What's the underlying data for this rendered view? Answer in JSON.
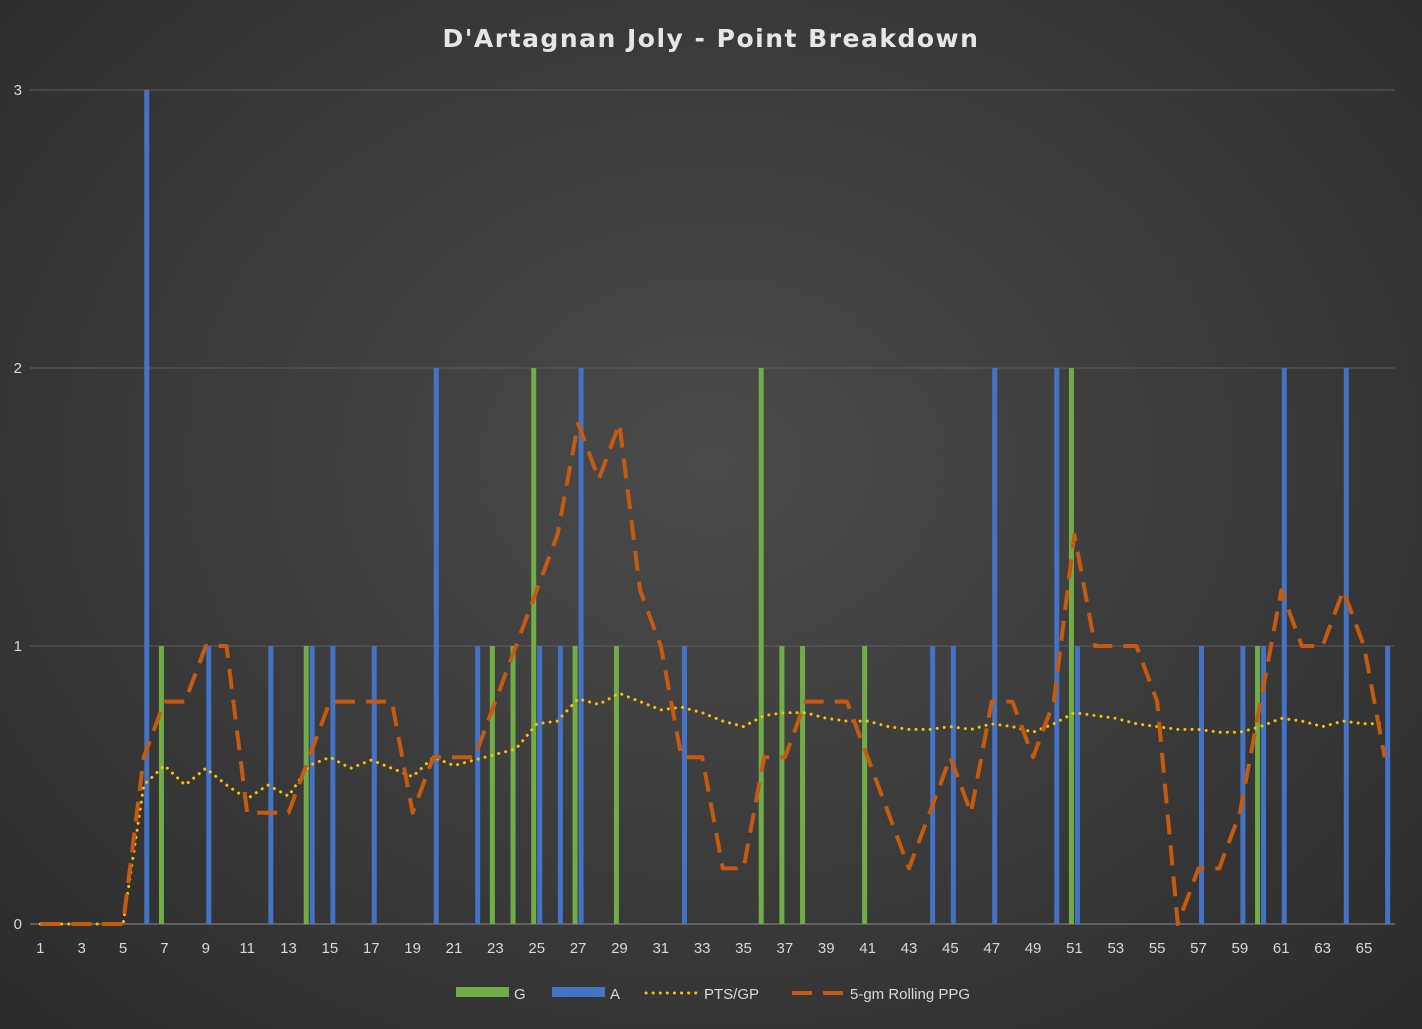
{
  "chart_data": {
    "type": "bar",
    "title": "D'Artagnan Joly - Point Breakdown",
    "xlabel": "",
    "ylabel": "",
    "ylim": [
      0,
      3
    ],
    "yticks": [
      0,
      1,
      2,
      3
    ],
    "grid": true,
    "legend_position": "bottom",
    "x": [
      1,
      2,
      3,
      4,
      5,
      6,
      7,
      8,
      9,
      10,
      11,
      12,
      13,
      14,
      15,
      16,
      17,
      18,
      19,
      20,
      21,
      22,
      23,
      24,
      25,
      26,
      27,
      28,
      29,
      30,
      31,
      32,
      33,
      34,
      35,
      36,
      37,
      38,
      39,
      40,
      41,
      42,
      43,
      44,
      45,
      46,
      47,
      48,
      49,
      50,
      51,
      52,
      53,
      54,
      55,
      56,
      57,
      58,
      59,
      60,
      61,
      62,
      63,
      64,
      65,
      66
    ],
    "x_tick_labels": [
      1,
      3,
      5,
      7,
      9,
      11,
      13,
      15,
      17,
      19,
      21,
      23,
      25,
      27,
      29,
      31,
      33,
      35,
      37,
      39,
      41,
      43,
      45,
      47,
      49,
      51,
      53,
      55,
      57,
      59,
      61,
      63,
      65
    ],
    "series": [
      {
        "name": "G",
        "kind": "bar",
        "color": "#70ad47",
        "values": [
          0,
          0,
          0,
          0,
          0,
          0,
          1,
          0,
          0,
          0,
          0,
          0,
          0,
          1,
          0,
          0,
          0,
          0,
          0,
          0,
          0,
          0,
          1,
          1,
          2,
          0,
          1,
          0,
          1,
          0,
          0,
          0,
          0,
          0,
          0,
          2,
          1,
          1,
          0,
          0,
          1,
          0,
          0,
          0,
          0,
          0,
          0,
          0,
          0,
          0,
          2,
          0,
          0,
          0,
          0,
          0,
          0,
          0,
          0,
          1,
          0,
          0,
          0,
          0,
          0,
          0
        ]
      },
      {
        "name": "A",
        "kind": "bar",
        "color": "#4472c4",
        "values": [
          0,
          0,
          0,
          0,
          0,
          3,
          0,
          0,
          1,
          0,
          0,
          1,
          0,
          1,
          1,
          0,
          1,
          0,
          0,
          2,
          0,
          1,
          0,
          0,
          1,
          1,
          2,
          0,
          0,
          0,
          0,
          1,
          0,
          0,
          0,
          0,
          0,
          0,
          0,
          0,
          0,
          0,
          0,
          1,
          1,
          0,
          2,
          0,
          0,
          2,
          1,
          0,
          0,
          0,
          0,
          0,
          1,
          0,
          1,
          1,
          2,
          0,
          0,
          2,
          0,
          1
        ]
      },
      {
        "name": "PTS/GP",
        "kind": "line",
        "style": "dotted",
        "color": "#ffc000",
        "values": [
          0,
          0,
          0,
          0,
          0,
          0.5,
          0.57,
          0.5,
          0.56,
          0.5,
          0.45,
          0.5,
          0.46,
          0.57,
          0.6,
          0.56,
          0.59,
          0.56,
          0.53,
          0.6,
          0.57,
          0.59,
          0.61,
          0.63,
          0.72,
          0.73,
          0.81,
          0.79,
          0.83,
          0.8,
          0.77,
          0.78,
          0.76,
          0.73,
          0.71,
          0.75,
          0.76,
          0.76,
          0.74,
          0.73,
          0.73,
          0.71,
          0.7,
          0.7,
          0.71,
          0.7,
          0.72,
          0.71,
          0.69,
          0.72,
          0.76,
          0.75,
          0.74,
          0.72,
          0.71,
          0.7,
          0.7,
          0.69,
          0.69,
          0.71,
          0.74,
          0.73,
          0.71,
          0.73,
          0.72,
          0.72
        ]
      },
      {
        "name": "5-gm Rolling PPG",
        "kind": "line",
        "style": "dashed",
        "color": "#c55a11",
        "values": [
          0,
          0,
          0,
          0,
          0,
          0.6,
          0.8,
          0.8,
          1.0,
          1.0,
          0.4,
          0.4,
          0.4,
          0.6,
          0.8,
          0.8,
          0.8,
          0.8,
          0.4,
          0.6,
          0.6,
          0.6,
          0.8,
          1.0,
          1.2,
          1.4,
          1.8,
          1.6,
          1.8,
          1.2,
          1.0,
          0.6,
          0.6,
          0.2,
          0.2,
          0.6,
          0.6,
          0.8,
          0.8,
          0.8,
          0.6,
          0.4,
          0.2,
          0.4,
          0.6,
          0.4,
          0.8,
          0.8,
          0.6,
          0.8,
          1.4,
          1.0,
          1.0,
          1.0,
          0.8,
          0,
          0.2,
          0.2,
          0.4,
          0.8,
          1.2,
          1.0,
          1.0,
          1.2,
          1.0,
          0.6
        ]
      }
    ]
  }
}
